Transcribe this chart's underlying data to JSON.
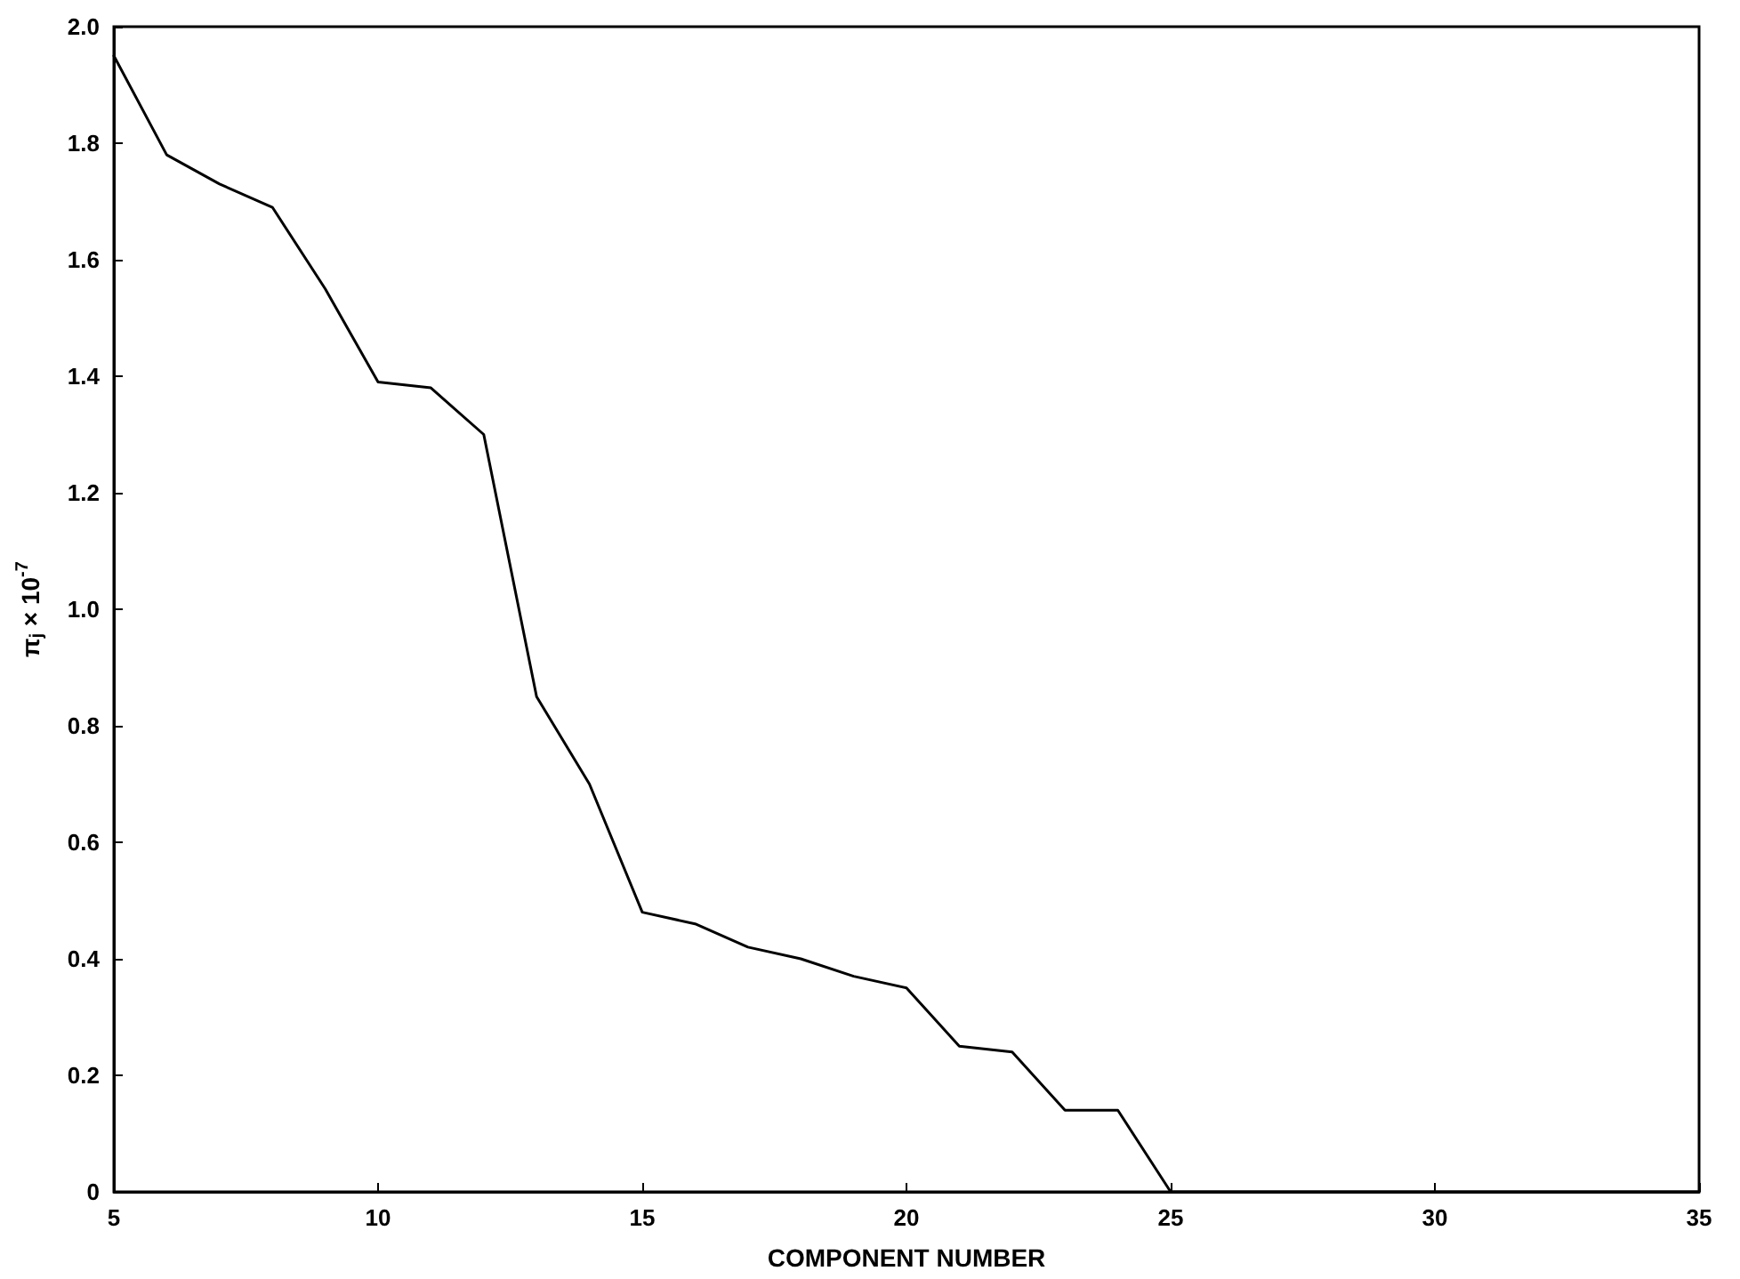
{
  "chart_data": {
    "type": "line",
    "xlabel": "COMPONENT NUMBER",
    "ylabel": "π$_{j}$ × 10$^{-7}$",
    "x": [
      5,
      6,
      7,
      8,
      9,
      10,
      11,
      12,
      13,
      14,
      15,
      16,
      17,
      18,
      19,
      20,
      21,
      22,
      23,
      24,
      25,
      26,
      27,
      28,
      29,
      30,
      31,
      32,
      33,
      34,
      35
    ],
    "series": [
      {
        "color": "#000000",
        "values": [
          1.95,
          1.78,
          1.73,
          1.69,
          1.55,
          1.39,
          1.38,
          1.3,
          0.85,
          0.7,
          0.48,
          0.46,
          0.42,
          0.4,
          0.37,
          0.35,
          0.25,
          0.24,
          0.14,
          0.14,
          0,
          0,
          0,
          0,
          0,
          0,
          0,
          0,
          0,
          0,
          0
        ]
      }
    ],
    "xlim": [
      5,
      35
    ],
    "xticks": [
      5,
      10,
      15,
      20,
      25,
      30,
      35
    ],
    "ylim": [
      0,
      2.0
    ],
    "yticks": [
      {
        "value": 0,
        "label": "0"
      },
      {
        "value": 0.2,
        "label": "0.2"
      },
      {
        "value": 0.4,
        "label": "0.4"
      },
      {
        "value": 0.6,
        "label": "0.6"
      },
      {
        "value": 0.8,
        "label": "0.8"
      },
      {
        "value": 1.0,
        "label": "1.0"
      },
      {
        "value": 1.2,
        "label": "1.2"
      },
      {
        "value": 1.4,
        "label": "1.4"
      },
      {
        "value": 1.6,
        "label": "1.6"
      },
      {
        "value": 1.8,
        "label": "1.8"
      },
      {
        "value": 2.0,
        "label": "2.0"
      }
    ],
    "grid": false,
    "marker": "none",
    "line_style": "solid"
  }
}
